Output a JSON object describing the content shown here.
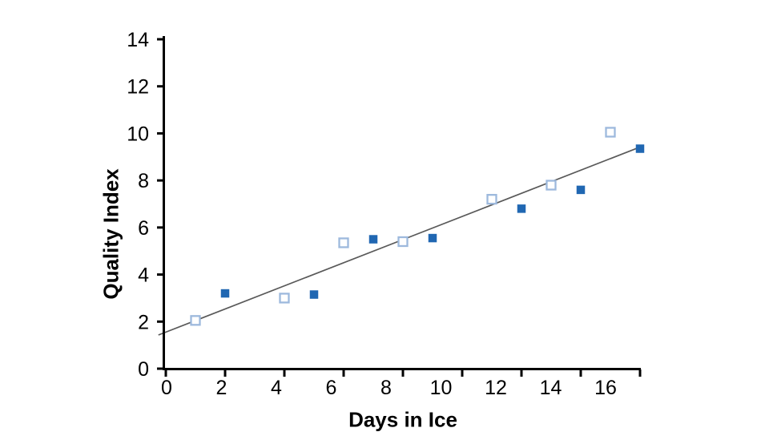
{
  "chart_data": {
    "type": "scatter",
    "title": "",
    "xlabel": "Days in Ice",
    "ylabel": "Quality Index",
    "xlim": [
      0,
      16
    ],
    "ylim": [
      0,
      14
    ],
    "x_ticks": [
      0,
      2,
      4,
      6,
      8,
      10,
      12,
      14,
      16
    ],
    "y_ticks": [
      0,
      2,
      4,
      6,
      8,
      10,
      12,
      14
    ],
    "grid": false,
    "legend": false,
    "axis_color": "#000000",
    "series": [
      {
        "name": "open-square-series",
        "marker": "open-square",
        "color": "#9db9dd",
        "points": [
          {
            "x": 1,
            "y": 2.05
          },
          {
            "x": 4,
            "y": 3.0
          },
          {
            "x": 6,
            "y": 5.35
          },
          {
            "x": 8,
            "y": 5.4
          },
          {
            "x": 11,
            "y": 7.2
          },
          {
            "x": 13,
            "y": 7.8
          },
          {
            "x": 15,
            "y": 10.05
          }
        ]
      },
      {
        "name": "filled-square-series",
        "marker": "filled-square",
        "color": "#2067b2",
        "points": [
          {
            "x": 2,
            "y": 3.2
          },
          {
            "x": 5,
            "y": 3.15
          },
          {
            "x": 7,
            "y": 5.5
          },
          {
            "x": 9,
            "y": 5.55
          },
          {
            "x": 12,
            "y": 6.8
          },
          {
            "x": 14,
            "y": 7.6
          },
          {
            "x": 16,
            "y": 9.35
          }
        ]
      }
    ],
    "trend_line": {
      "x1": -0.25,
      "y1": 1.43,
      "x2": 15.9,
      "y2": 9.37,
      "color": "#595959"
    }
  }
}
